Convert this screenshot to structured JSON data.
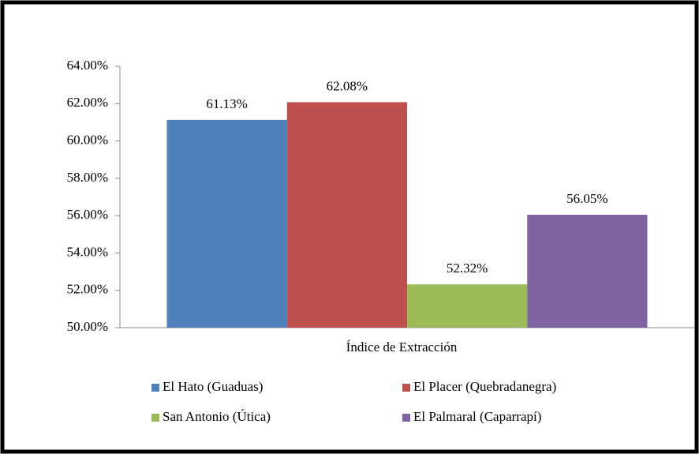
{
  "chart_data": {
    "type": "bar",
    "categories": [
      "Índice de Extracción"
    ],
    "series": [
      {
        "name": "El Hato (Guaduas)",
        "color": "#4f81bd",
        "values": [
          61.13
        ],
        "value_labels": [
          "61.13%"
        ]
      },
      {
        "name": "El Placer (Quebradanegra)",
        "color": "#c0504d",
        "values": [
          62.08
        ],
        "value_labels": [
          "62.08%"
        ]
      },
      {
        "name": "San Antonio (Útica)",
        "color": "#9bbb59",
        "values": [
          52.32
        ],
        "value_labels": [
          "52.32%"
        ]
      },
      {
        "name": "El Palmaral (Caparrapí)",
        "color": "#8064a2",
        "values": [
          56.05
        ],
        "value_labels": [
          "56.05%"
        ]
      }
    ],
    "ylim": [
      50,
      64
    ],
    "yticks": [
      {
        "value": 50,
        "label": "50.00%"
      },
      {
        "value": 52,
        "label": "52.00%"
      },
      {
        "value": 54,
        "label": "54.00%"
      },
      {
        "value": 56,
        "label": "56.00%"
      },
      {
        "value": 58,
        "label": "58.00%"
      },
      {
        "value": 60,
        "label": "60.00%"
      },
      {
        "value": 62,
        "label": "62.00%"
      },
      {
        "value": 64,
        "label": "64.00%"
      }
    ],
    "grid": false,
    "legend": "bottom"
  }
}
